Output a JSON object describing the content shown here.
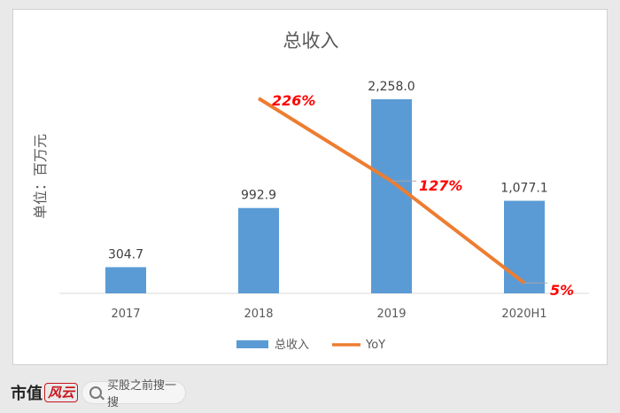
{
  "chart_data": {
    "type": "bar",
    "title": "总收入",
    "ylabel": "单位：百万元",
    "categories": [
      "2017",
      "2018",
      "2019",
      "2020H1"
    ],
    "series": [
      {
        "name": "总收入",
        "type": "bar",
        "values": [
          304.7,
          992.9,
          2258.0,
          1077.1
        ],
        "labels": [
          "304.7",
          "992.9",
          "2,258.0",
          "1,077.1"
        ],
        "color": "#5b9bd5"
      },
      {
        "name": "YoY",
        "type": "line",
        "values": [
          null,
          226,
          127,
          5
        ],
        "labels": [
          "",
          "226%",
          "127%",
          "5%"
        ],
        "color": "#ed7d31"
      }
    ],
    "ylim": [
      0,
      2258
    ],
    "y2lim": [
      0,
      226
    ],
    "grid": false,
    "legend": "bottom"
  },
  "footer": {
    "brand": "市值",
    "brand_mark": "风云",
    "search_label": "买股之前搜一搜",
    "search_icon": "search-icon"
  }
}
